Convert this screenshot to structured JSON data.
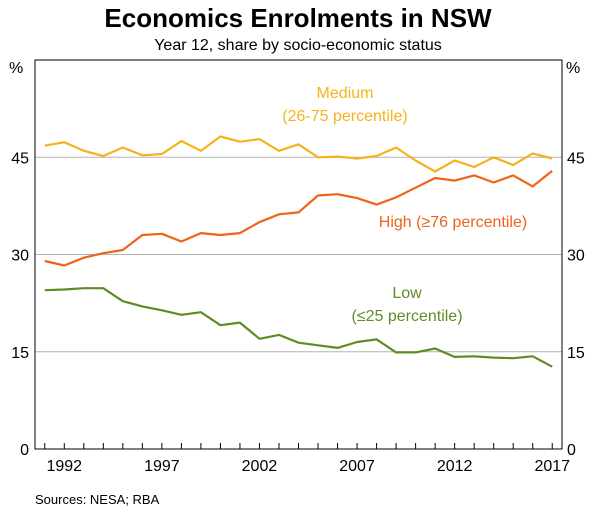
{
  "chart_data": {
    "type": "line",
    "title": "Economics Enrolments in NSW",
    "subtitle": "Year 12, share by socio-economic status",
    "ylabel_left": "%",
    "ylabel_right": "%",
    "ylim": [
      0,
      60
    ],
    "yticks": [
      0,
      15,
      30,
      45
    ],
    "xlim": [
      1990.5,
      2017.5
    ],
    "xticks": [
      1992,
      1997,
      2002,
      2007,
      2012,
      2017
    ],
    "source": "Sources: NESA; RBA",
    "x": [
      1991,
      1992,
      1993,
      1994,
      1995,
      1996,
      1997,
      1998,
      1999,
      2000,
      2001,
      2002,
      2003,
      2004,
      2005,
      2006,
      2007,
      2008,
      2009,
      2010,
      2011,
      2012,
      2013,
      2014,
      2015,
      2016,
      2017
    ],
    "series": [
      {
        "key": "medium",
        "color": "#f5b21b",
        "label_lines": [
          "Medium",
          "(26-75 percentile)"
        ],
        "values": [
          46.8,
          47.3,
          46.0,
          45.2,
          46.5,
          45.3,
          45.5,
          47.5,
          46.0,
          48.2,
          47.4,
          47.8,
          46.0,
          47.0,
          45.0,
          45.1,
          44.8,
          45.2,
          46.5,
          44.5,
          42.8,
          44.5,
          43.5,
          45.0,
          43.8,
          45.6,
          44.8
        ]
      },
      {
        "key": "high",
        "color": "#ef6318",
        "label_lines": [
          "High (≥76 percentile)"
        ],
        "values": [
          29.0,
          28.3,
          29.5,
          30.2,
          30.7,
          33.0,
          33.2,
          32.0,
          33.3,
          33.0,
          33.3,
          35.0,
          36.2,
          36.5,
          39.1,
          39.3,
          38.7,
          37.7,
          38.8,
          40.3,
          41.8,
          41.4,
          42.2,
          41.1,
          42.2,
          40.5,
          42.9
        ]
      },
      {
        "key": "low",
        "color": "#5f8b25",
        "label_lines": [
          "Low",
          "(≤25 percentile)"
        ],
        "values": [
          24.5,
          24.6,
          24.8,
          24.8,
          22.8,
          22.0,
          21.4,
          20.7,
          21.1,
          19.1,
          19.5,
          17.0,
          17.6,
          16.4,
          16.0,
          15.6,
          16.5,
          16.9,
          14.9,
          14.9,
          15.5,
          14.2,
          14.3,
          14.1,
          14.0,
          14.3,
          12.7
        ]
      }
    ],
    "grid": true
  }
}
